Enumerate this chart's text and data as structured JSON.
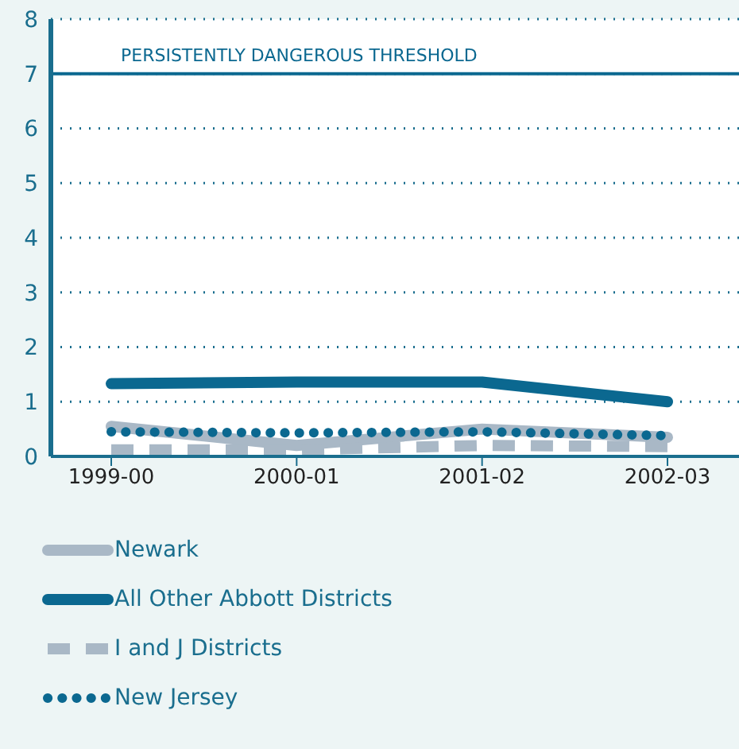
{
  "chart_data": {
    "type": "line",
    "categories": [
      "1999-00",
      "2000-01",
      "2001-02",
      "2002-03"
    ],
    "series": [
      {
        "name": "Newark",
        "color": "#a9b8c6",
        "values": [
          0.55,
          0.2,
          0.5,
          0.35
        ],
        "line_style": "solid"
      },
      {
        "name": "All Other Abbott Districts",
        "color": "#0b6890",
        "values": [
          1.33,
          1.36,
          1.36,
          1.0
        ],
        "line_style": "solid"
      },
      {
        "name": "I and J Districts",
        "color": "#a9b8c6",
        "values": [
          0.12,
          0.12,
          0.2,
          0.18
        ],
        "line_style": "dashed"
      },
      {
        "name": "New Jersey",
        "color": "#0b6890",
        "values": [
          0.45,
          0.43,
          0.45,
          0.38
        ],
        "line_style": "dotted"
      }
    ],
    "ylim": [
      0,
      8
    ],
    "yticks": [
      0,
      1,
      2,
      3,
      4,
      5,
      6,
      7,
      8
    ],
    "grid": "y",
    "legend": "bottom",
    "marker": "none",
    "ref_lines": [
      {
        "axis": "y",
        "value": 7,
        "label": "PERSISTENTLY DANGEROUS THRESHOLD",
        "color": "#0b6890"
      }
    ]
  }
}
